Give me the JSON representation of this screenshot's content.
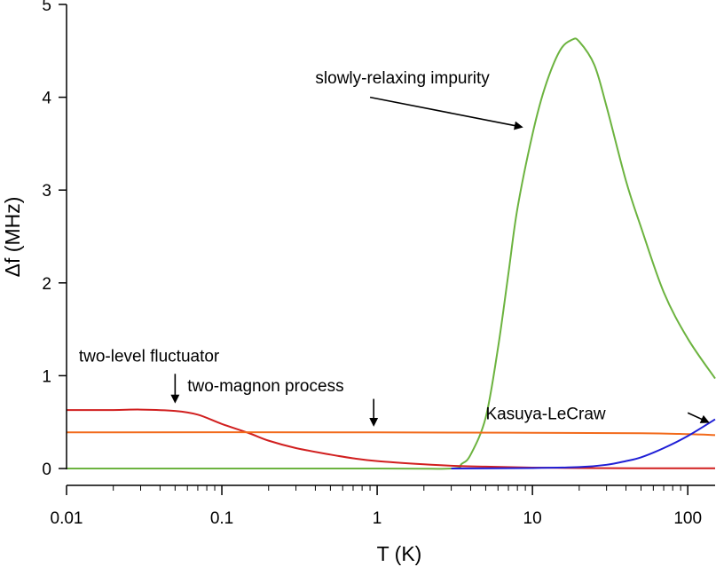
{
  "chart_data": {
    "type": "line",
    "xlabel": "T (K)",
    "ylabel": "Δf (MHz)",
    "xscale": "log",
    "xlim": [
      0.01,
      150
    ],
    "ylim": [
      0,
      5
    ],
    "grid": false,
    "x_ticks": [
      {
        "value": 0.01,
        "label": "0.01"
      },
      {
        "value": 0.1,
        "label": "0.1"
      },
      {
        "value": 1,
        "label": "1"
      },
      {
        "value": 10,
        "label": "10"
      },
      {
        "value": 100,
        "label": "100"
      }
    ],
    "y_ticks": [
      {
        "value": 0,
        "label": "0"
      },
      {
        "value": 1,
        "label": "1"
      },
      {
        "value": 2,
        "label": "2"
      },
      {
        "value": 3,
        "label": "3"
      },
      {
        "value": 4,
        "label": "4"
      },
      {
        "value": 5,
        "label": "5"
      }
    ],
    "series": [
      {
        "color": "#6cb33f",
        "points": [
          [
            0.01,
            0.0
          ],
          [
            1,
            0.0
          ],
          [
            3,
            0.0
          ],
          [
            3.5,
            0.05
          ],
          [
            4,
            0.15
          ],
          [
            5,
            0.55
          ],
          [
            6,
            1.3
          ],
          [
            7,
            2.1
          ],
          [
            8,
            2.8
          ],
          [
            10,
            3.6
          ],
          [
            12,
            4.1
          ],
          [
            15,
            4.5
          ],
          [
            18,
            4.62
          ],
          [
            20,
            4.6
          ],
          [
            25,
            4.35
          ],
          [
            30,
            3.9
          ],
          [
            40,
            3.1
          ],
          [
            50,
            2.6
          ],
          [
            70,
            1.9
          ],
          [
            100,
            1.4
          ],
          [
            150,
            0.97
          ]
        ]
      },
      {
        "color": "#d11f1f",
        "points": [
          [
            0.01,
            0.63
          ],
          [
            0.02,
            0.63
          ],
          [
            0.03,
            0.635
          ],
          [
            0.05,
            0.62
          ],
          [
            0.07,
            0.58
          ],
          [
            0.1,
            0.48
          ],
          [
            0.15,
            0.38
          ],
          [
            0.2,
            0.3
          ],
          [
            0.3,
            0.22
          ],
          [
            0.5,
            0.15
          ],
          [
            0.7,
            0.11
          ],
          [
            1,
            0.08
          ],
          [
            2,
            0.045
          ],
          [
            3,
            0.03
          ],
          [
            5,
            0.02
          ],
          [
            10,
            0.01
          ],
          [
            20,
            0.005
          ],
          [
            50,
            0.003
          ],
          [
            150,
            0.002
          ]
        ]
      },
      {
        "color": "#f26a1b",
        "points": [
          [
            0.01,
            0.39
          ],
          [
            1,
            0.39
          ],
          [
            10,
            0.385
          ],
          [
            50,
            0.38
          ],
          [
            100,
            0.37
          ],
          [
            150,
            0.36
          ]
        ]
      },
      {
        "color": "#1f1fd6",
        "points": [
          [
            3,
            0.0
          ],
          [
            10,
            0.005
          ],
          [
            20,
            0.015
          ],
          [
            30,
            0.04
          ],
          [
            40,
            0.08
          ],
          [
            50,
            0.12
          ],
          [
            70,
            0.22
          ],
          [
            100,
            0.35
          ],
          [
            150,
            0.53
          ]
        ]
      }
    ],
    "annotations": [
      {
        "text": "slowly-relaxing impurity",
        "tx": 0.4,
        "ty": 4.15,
        "anchor": "start",
        "ax1": 0.9,
        "ay1": 4.0,
        "ax2": 8.5,
        "ay2": 3.68
      },
      {
        "text": "two-level fluctuator",
        "tx": 0.012,
        "ty": 1.15,
        "anchor": "start",
        "ax1": 0.05,
        "ay1": 1.02,
        "ax2": 0.05,
        "ay2": 0.72
      },
      {
        "text": "two-magnon process",
        "tx": 0.06,
        "ty": 0.83,
        "anchor": "start",
        "ax1": 0.95,
        "ay1": 0.75,
        "ax2": 0.95,
        "ay2": 0.47
      },
      {
        "text": "Kasuya-LeCraw",
        "tx": 5,
        "ty": 0.53,
        "anchor": "start",
        "ax1": 100,
        "ay1": 0.6,
        "ax2": 135,
        "ay2": 0.5
      }
    ]
  }
}
